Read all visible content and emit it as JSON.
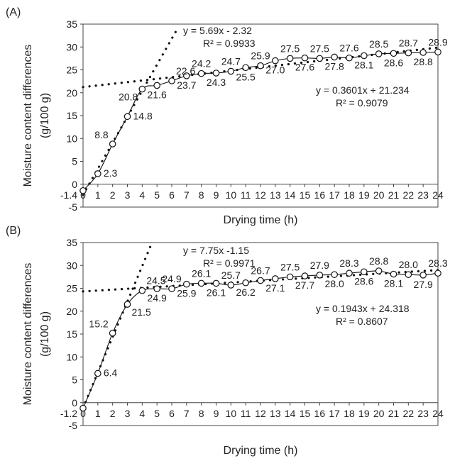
{
  "chart_data": [
    {
      "panel": "(A)",
      "type": "scatter",
      "xlabel": "Drying time (h)",
      "ylabel": [
        "Moisture content differences",
        "(g/100 g)"
      ],
      "xlim": [
        0,
        24
      ],
      "ylim": [
        -5,
        35
      ],
      "x_ticks": [
        0,
        1,
        2,
        3,
        4,
        5,
        6,
        7,
        8,
        9,
        10,
        11,
        12,
        13,
        14,
        15,
        16,
        17,
        18,
        19,
        20,
        21,
        22,
        23,
        24
      ],
      "y_ticks": [
        -5,
        0,
        5,
        10,
        15,
        20,
        25,
        30,
        35
      ],
      "y_tick_labels": [
        "-5",
        "0",
        "5",
        "10",
        "15",
        "20",
        "25",
        "30",
        "35"
      ],
      "x0_label": "-1.4",
      "series": [
        {
          "x": [
            0,
            1,
            2,
            3,
            4,
            5,
            6,
            7,
            8,
            9,
            10,
            11,
            12,
            13,
            14,
            15,
            16,
            17,
            18,
            19,
            20,
            21,
            22,
            23,
            24
          ],
          "values": [
            -1.4,
            2.3,
            8.8,
            14.8,
            20.8,
            21.6,
            22.6,
            23.7,
            24.2,
            24.3,
            24.7,
            25.5,
            25.9,
            27.0,
            27.5,
            27.6,
            27.5,
            27.8,
            27.6,
            28.1,
            28.5,
            28.6,
            28.7,
            28.8,
            28.9
          ]
        }
      ],
      "data_labels": [
        {
          "text": "2.3",
          "x": 1,
          "y": 2.3,
          "pos": "right"
        },
        {
          "text": "8.8",
          "x": 2,
          "y": 8.8,
          "pos": "upper-left"
        },
        {
          "text": "14.8",
          "x": 3,
          "y": 14.8,
          "pos": "right"
        },
        {
          "text": "20.8",
          "x": 4,
          "y": 20.8,
          "pos": "lower-left"
        },
        {
          "text": "21.6",
          "x": 5,
          "y": 21.6,
          "pos": "below"
        },
        {
          "text": "22.6",
          "x": 6,
          "y": 22.6,
          "pos": "upper-right"
        },
        {
          "text": "23.7",
          "x": 7,
          "y": 23.7,
          "pos": "below"
        },
        {
          "text": "24.2",
          "x": 8,
          "y": 24.2,
          "pos": "above"
        },
        {
          "text": "24.3",
          "x": 9,
          "y": 24.3,
          "pos": "below"
        },
        {
          "text": "24.7",
          "x": 10,
          "y": 24.7,
          "pos": "above"
        },
        {
          "text": "25.5",
          "x": 11,
          "y": 25.5,
          "pos": "below"
        },
        {
          "text": "25.9",
          "x": 12,
          "y": 25.9,
          "pos": "above"
        },
        {
          "text": "27.0",
          "x": 13,
          "y": 27.0,
          "pos": "below"
        },
        {
          "text": "27.5",
          "x": 14,
          "y": 27.5,
          "pos": "above"
        },
        {
          "text": "27.6",
          "x": 15,
          "y": 27.6,
          "pos": "below"
        },
        {
          "text": "27.5",
          "x": 16,
          "y": 27.5,
          "pos": "above"
        },
        {
          "text": "27.8",
          "x": 17,
          "y": 27.8,
          "pos": "below"
        },
        {
          "text": "27.6",
          "x": 18,
          "y": 27.6,
          "pos": "above"
        },
        {
          "text": "28.1",
          "x": 19,
          "y": 28.1,
          "pos": "below"
        },
        {
          "text": "28.5",
          "x": 20,
          "y": 28.5,
          "pos": "above"
        },
        {
          "text": "28.6",
          "x": 21,
          "y": 28.6,
          "pos": "below"
        },
        {
          "text": "28.7",
          "x": 22,
          "y": 28.7,
          "pos": "above"
        },
        {
          "text": "28.8",
          "x": 23,
          "y": 28.8,
          "pos": "below"
        },
        {
          "text": "28.9",
          "x": 24,
          "y": 28.9,
          "pos": "above"
        }
      ],
      "trendlines": [
        {
          "slope": 5.69,
          "intercept": -2.32,
          "x_range": [
            0,
            6.45
          ]
        },
        {
          "slope": 0.3601,
          "intercept": 21.234,
          "x_range": [
            0,
            24
          ]
        }
      ],
      "annotations": [
        {
          "lines": [
            "y = 5.69x - 2.32",
            "R² = 0.9933"
          ]
        },
        {
          "lines": [
            "y = 0.3601x + 21.234",
            "R² = 0.9079"
          ]
        }
      ]
    },
    {
      "panel": "(B)",
      "type": "scatter",
      "xlabel": "Drying time (h)",
      "ylabel": [
        "Moisture content differences",
        "(g/100 g)"
      ],
      "xlim": [
        0,
        24
      ],
      "ylim": [
        -5,
        35
      ],
      "x_ticks": [
        0,
        1,
        2,
        3,
        4,
        5,
        6,
        7,
        8,
        9,
        10,
        11,
        12,
        13,
        14,
        15,
        16,
        17,
        18,
        19,
        20,
        21,
        22,
        23,
        24
      ],
      "y_ticks": [
        -5,
        0,
        5,
        10,
        15,
        20,
        25,
        30,
        35
      ],
      "y_tick_labels": [
        "-5",
        "0",
        "5",
        "10",
        "15",
        "20",
        "25",
        "30",
        "35"
      ],
      "x0_label": "-1.2",
      "series": [
        {
          "x": [
            0,
            1,
            2,
            3,
            4,
            5,
            6,
            7,
            8,
            9,
            10,
            11,
            12,
            13,
            14,
            15,
            16,
            17,
            18,
            19,
            20,
            21,
            22,
            23,
            24
          ],
          "values": [
            -1.2,
            6.4,
            15.2,
            21.5,
            24.5,
            24.9,
            24.9,
            25.9,
            26.1,
            26.1,
            25.7,
            26.2,
            26.7,
            27.1,
            27.5,
            27.7,
            27.9,
            28.0,
            28.3,
            28.6,
            28.8,
            28.1,
            28.0,
            27.9,
            28.3
          ]
        }
      ],
      "data_labels": [
        {
          "text": "6.4",
          "x": 1,
          "y": 6.4,
          "pos": "right"
        },
        {
          "text": "15.2",
          "x": 2,
          "y": 15.2,
          "pos": "upper-left"
        },
        {
          "text": "21.5",
          "x": 3,
          "y": 21.5,
          "pos": "lower-right"
        },
        {
          "text": "24.5",
          "x": 4,
          "y": 24.5,
          "pos": "upper-right"
        },
        {
          "text": "24.9",
          "x": 5,
          "y": 24.9,
          "pos": "below"
        },
        {
          "text": "24.9",
          "x": 6,
          "y": 24.9,
          "pos": "above"
        },
        {
          "text": "25.9",
          "x": 7,
          "y": 25.9,
          "pos": "below"
        },
        {
          "text": "26.1",
          "x": 8,
          "y": 26.1,
          "pos": "above"
        },
        {
          "text": "26.1",
          "x": 9,
          "y": 26.1,
          "pos": "below"
        },
        {
          "text": "25.7",
          "x": 10,
          "y": 25.7,
          "pos": "above"
        },
        {
          "text": "26.2",
          "x": 11,
          "y": 26.2,
          "pos": "below"
        },
        {
          "text": "26.7",
          "x": 12,
          "y": 26.7,
          "pos": "above"
        },
        {
          "text": "27.1",
          "x": 13,
          "y": 27.1,
          "pos": "below"
        },
        {
          "text": "27.5",
          "x": 14,
          "y": 27.5,
          "pos": "above"
        },
        {
          "text": "27.7",
          "x": 15,
          "y": 27.7,
          "pos": "below"
        },
        {
          "text": "27.9",
          "x": 16,
          "y": 27.9,
          "pos": "above"
        },
        {
          "text": "28.0",
          "x": 17,
          "y": 28.0,
          "pos": "below"
        },
        {
          "text": "28.3",
          "x": 18,
          "y": 28.3,
          "pos": "above"
        },
        {
          "text": "28.6",
          "x": 19,
          "y": 28.6,
          "pos": "below"
        },
        {
          "text": "28.8",
          "x": 20,
          "y": 28.8,
          "pos": "above"
        },
        {
          "text": "28.1",
          "x": 21,
          "y": 28.1,
          "pos": "below"
        },
        {
          "text": "28.0",
          "x": 22,
          "y": 28.0,
          "pos": "above"
        },
        {
          "text": "27.9",
          "x": 23,
          "y": 27.9,
          "pos": "below"
        },
        {
          "text": "28.3",
          "x": 24,
          "y": 28.3,
          "pos": "above"
        }
      ],
      "trendlines": [
        {
          "slope": 7.75,
          "intercept": -1.15,
          "x_range": [
            0,
            4.55
          ]
        },
        {
          "slope": 0.1943,
          "intercept": 24.318,
          "x_range": [
            0,
            24
          ]
        }
      ],
      "annotations": [
        {
          "lines": [
            "y = 7.75x -1.15",
            "R² = 0.9971"
          ]
        },
        {
          "lines": [
            "y = 0.1943x + 24.318",
            "R² = 0.8607"
          ]
        }
      ]
    }
  ]
}
